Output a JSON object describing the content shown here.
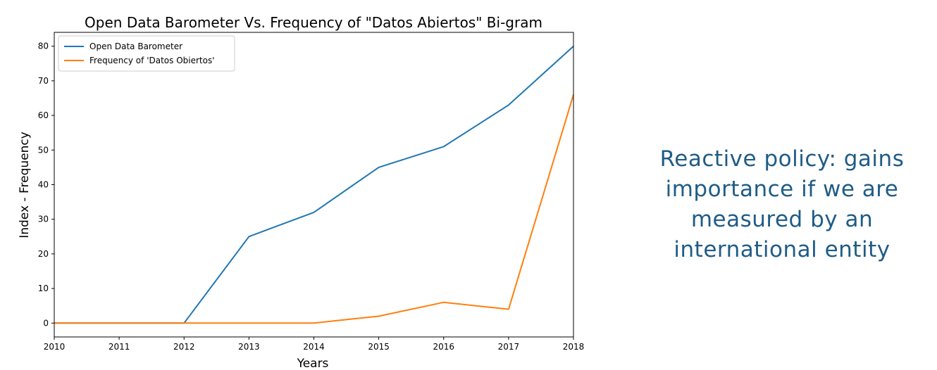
{
  "chart_data": {
    "type": "line",
    "title": "Open Data Barometer Vs. Frequency of \"Datos Abiertos\" Bi-gram",
    "xlabel": "Years",
    "ylabel": "Index - Frequency",
    "x": [
      2010,
      2011,
      2012,
      2013,
      2014,
      2015,
      2016,
      2017,
      2018
    ],
    "xlim": [
      2010,
      2018
    ],
    "ylim": [
      -4,
      84
    ],
    "xticks": [
      2010,
      2011,
      2012,
      2013,
      2014,
      2015,
      2016,
      2017,
      2018
    ],
    "yticks": [
      0,
      10,
      20,
      30,
      40,
      50,
      60,
      70,
      80
    ],
    "grid": false,
    "legend": "top-left",
    "series": [
      {
        "name": "Open Data Barometer",
        "color": "#1f77b4",
        "values": [
          0,
          0,
          0,
          25,
          32,
          45,
          51,
          63,
          80
        ]
      },
      {
        "name": "Frequency of 'Datos Obiertos'",
        "color": "#ff7f0e",
        "values": [
          0,
          0,
          0,
          0,
          0,
          2,
          6,
          4,
          66
        ]
      }
    ]
  },
  "side_note": {
    "lines": [
      "Reactive policy: gains",
      "importance if we are",
      "measured by an",
      "international entity"
    ],
    "color": "#1f5c86"
  }
}
